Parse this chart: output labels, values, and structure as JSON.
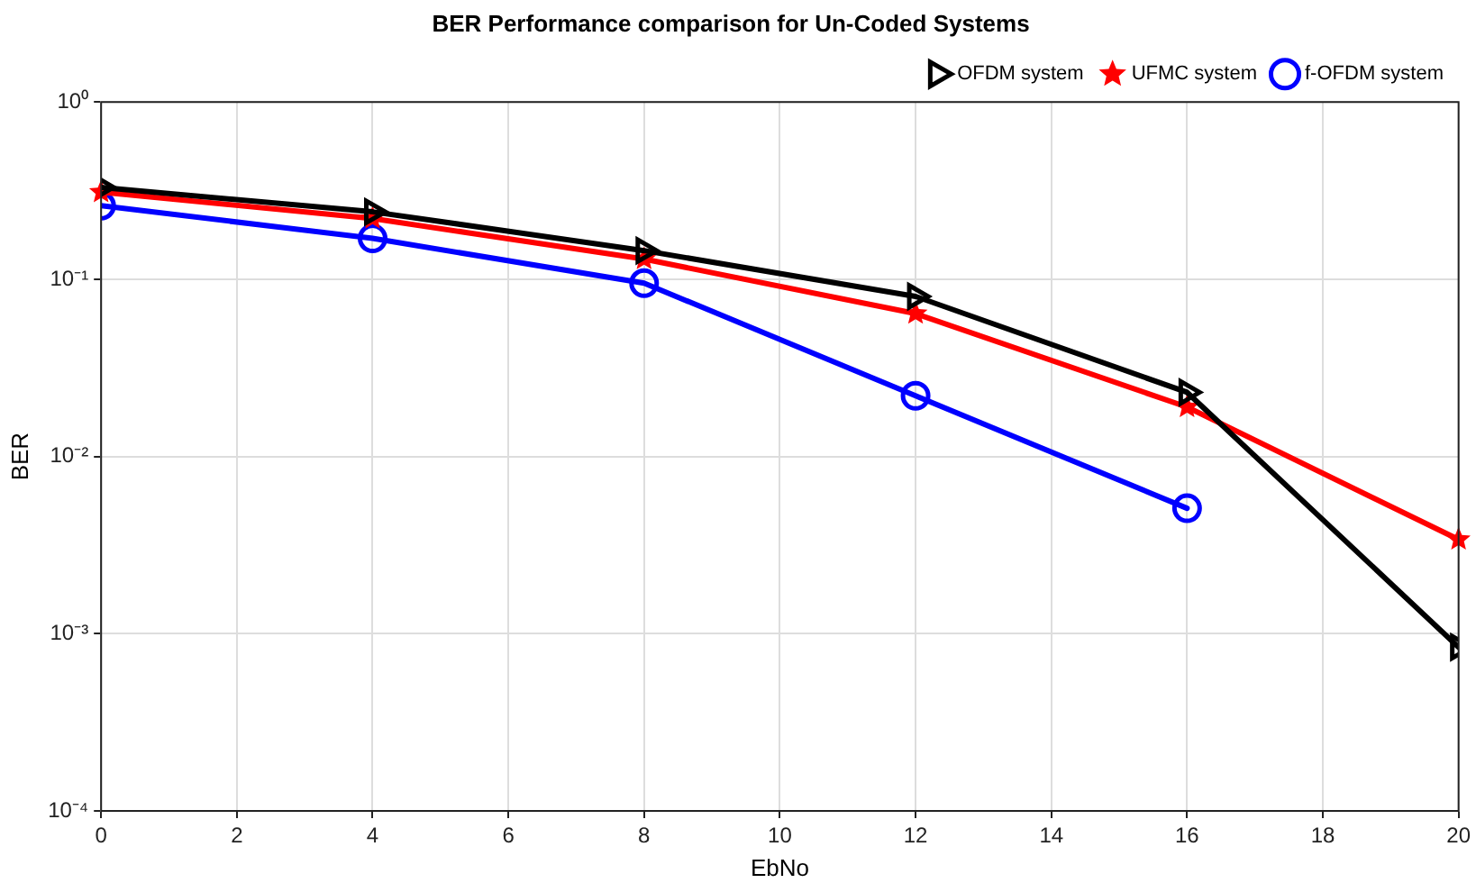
{
  "chart_data": {
    "type": "line",
    "title": "BER Performance comparison for Un-Coded Systems",
    "xlabel": "EbNo",
    "ylabel": "BER",
    "x": [
      0,
      4,
      8,
      12,
      16,
      20
    ],
    "series": [
      {
        "name": "OFDM system",
        "color": "#000000",
        "marker": "triangle",
        "values": [
          0.33,
          0.24,
          0.145,
          0.08,
          0.023,
          0.00084
        ]
      },
      {
        "name": "UFMC system",
        "color": "#ff0000",
        "marker": "star",
        "values": [
          0.31,
          0.22,
          0.13,
          0.064,
          0.019,
          0.0034
        ]
      },
      {
        "name": "f-OFDM system",
        "color": "#0000ff",
        "marker": "circle",
        "values": [
          0.26,
          0.17,
          0.095,
          0.022,
          0.0051,
          null
        ]
      }
    ],
    "log": "y",
    "xlim": [
      0,
      20
    ],
    "xticks": [
      0,
      2,
      4,
      6,
      8,
      10,
      12,
      14,
      16,
      18,
      20
    ],
    "ylim": [
      0.0001,
      1
    ],
    "yticks": [
      {
        "value": 0.0001,
        "label": "10⁻⁴"
      },
      {
        "value": 0.001,
        "label": "10⁻³"
      },
      {
        "value": 0.01,
        "label": "10⁻²"
      },
      {
        "value": 0.1,
        "label": "10⁻¹"
      },
      {
        "value": 1,
        "label": "10⁰"
      }
    ],
    "grid": true,
    "legend": "top right",
    "line_style": "solid"
  }
}
